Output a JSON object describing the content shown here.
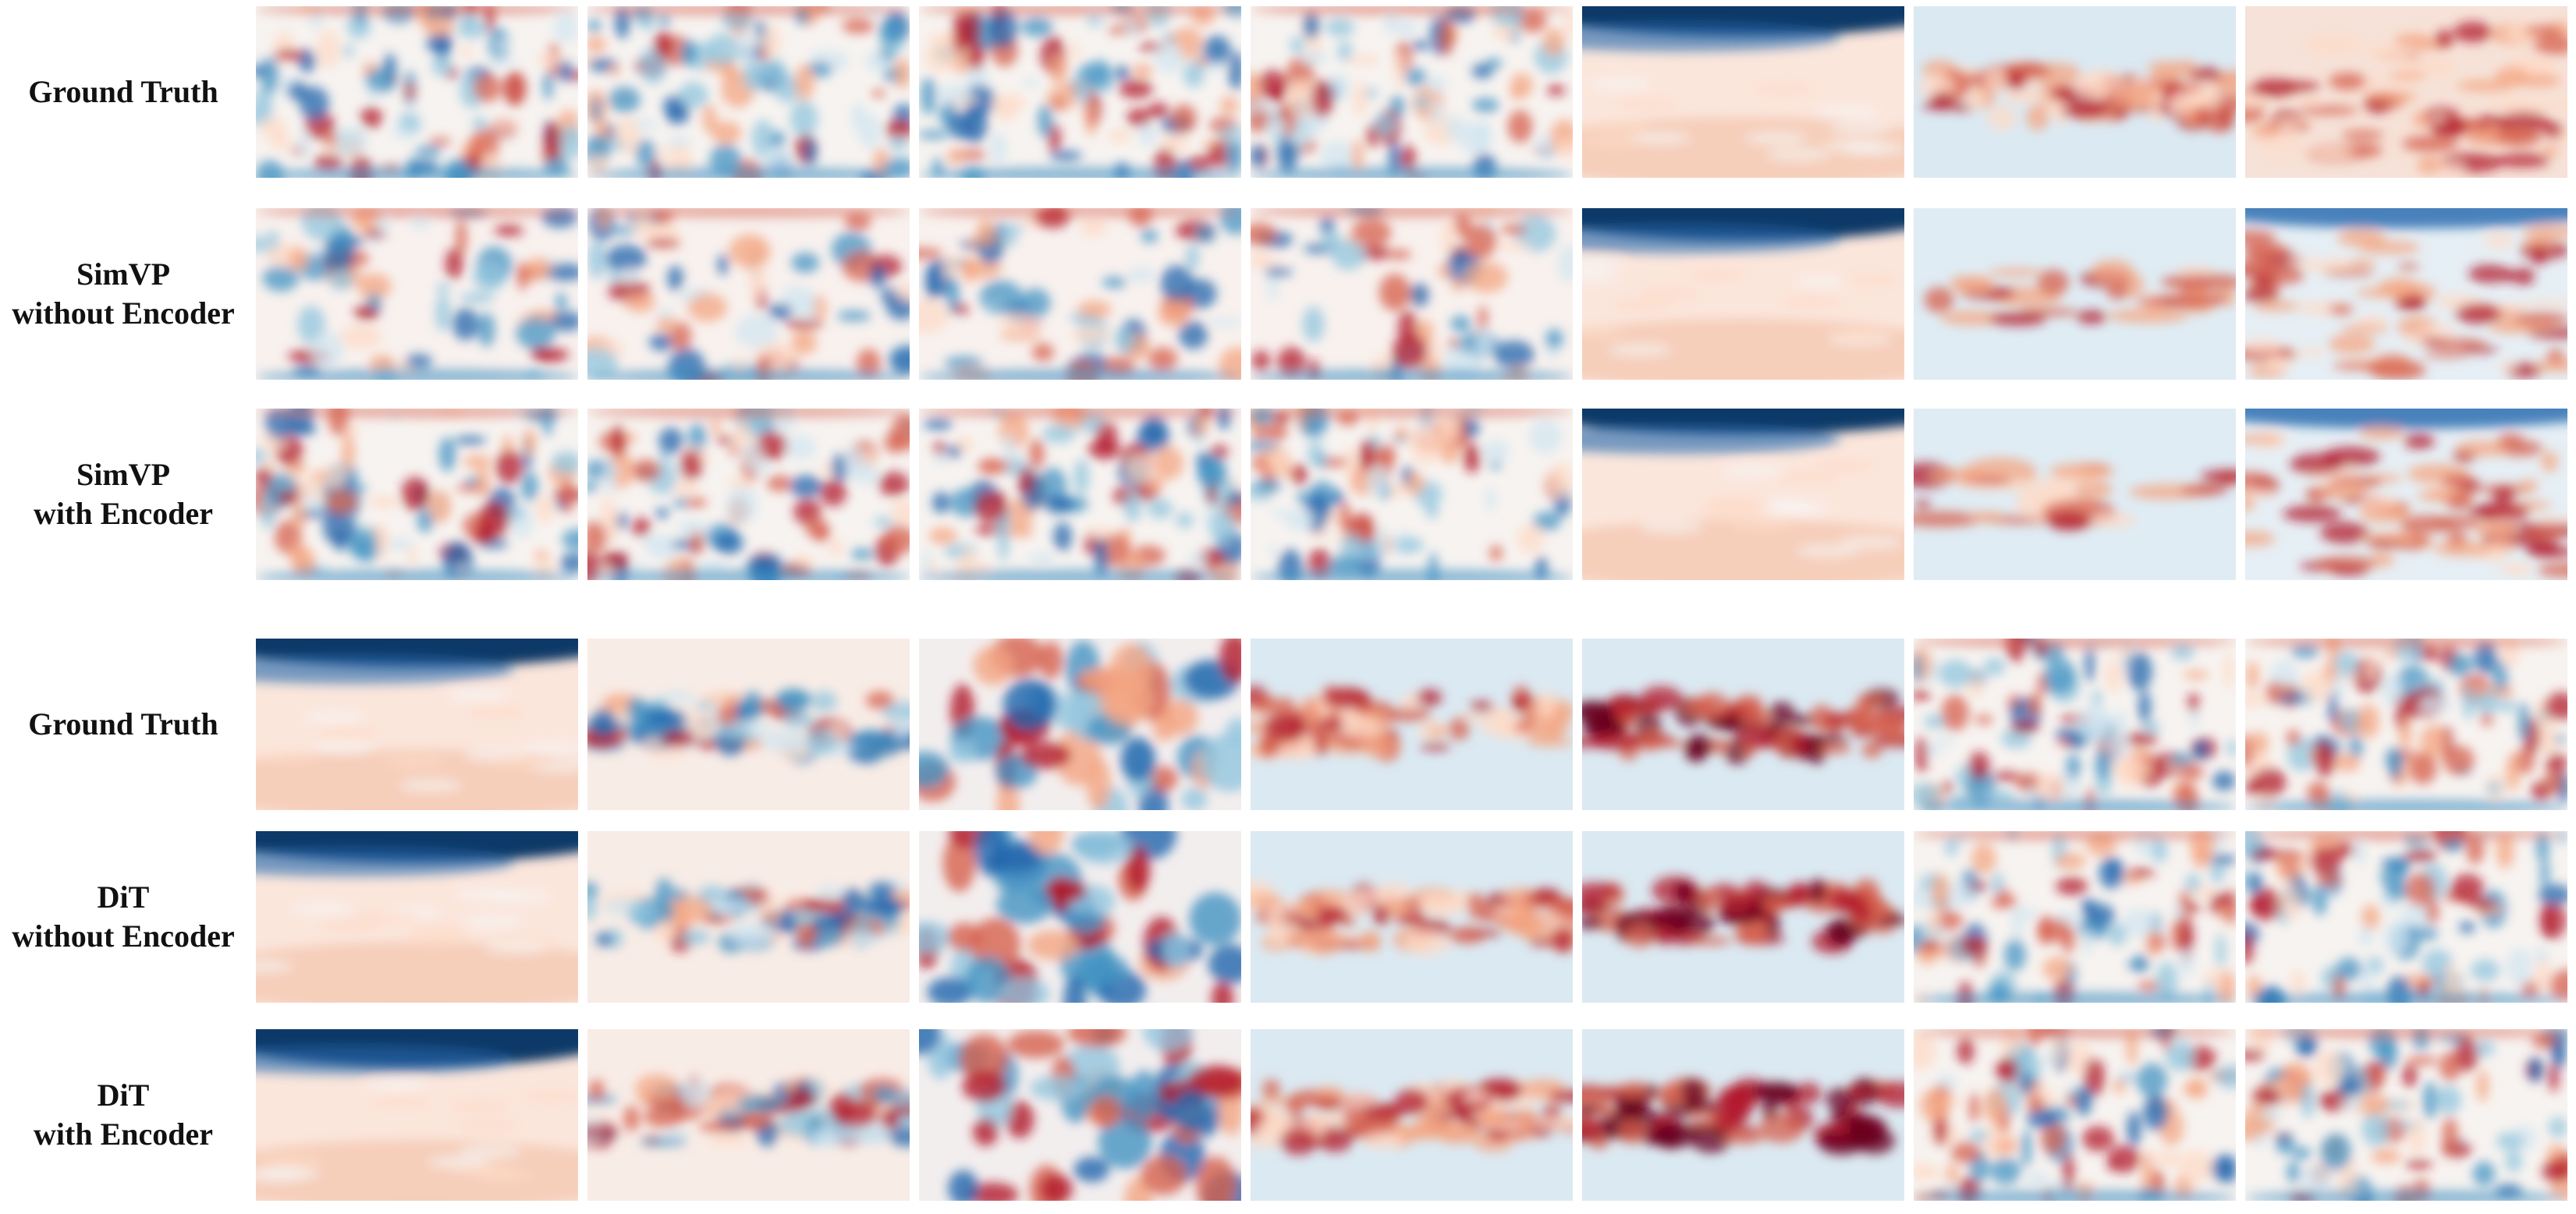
{
  "rows": [
    {
      "lines": [
        "Ground Truth"
      ]
    },
    {
      "lines": [
        "SimVP",
        "without Encoder"
      ]
    },
    {
      "lines": [
        "SimVP",
        "with Encoder"
      ]
    },
    {
      "lines": [
        "Ground Truth"
      ]
    },
    {
      "lines": [
        "DiT",
        "without Encoder"
      ]
    },
    {
      "lines": [
        "DiT",
        "with Encoder"
      ]
    }
  ]
}
